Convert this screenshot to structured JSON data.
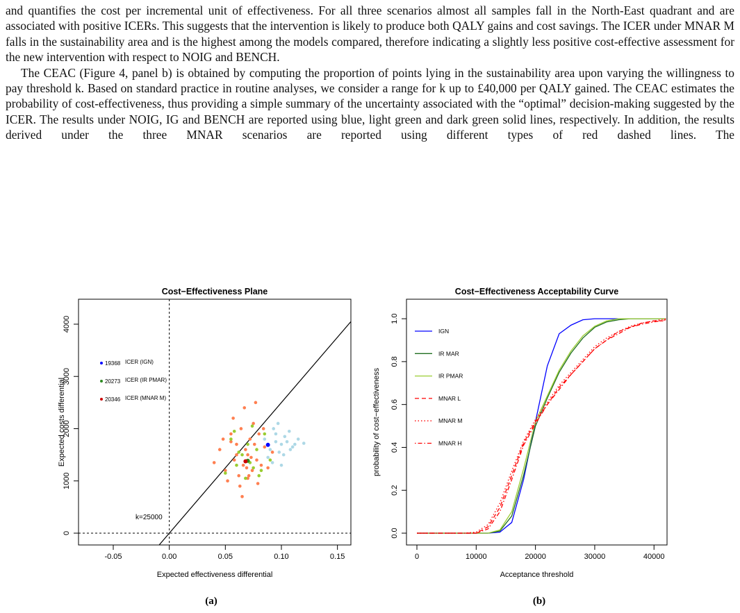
{
  "paragraphs": [
    "and quantifies the cost per incremental unit of effectiveness. For all three scenarios almost all samples fall in the North-East quadrant and are associated with positive ICERs. This suggests that the intervention is likely to produce both QALY gains and cost savings. The ICER under MNAR M falls in the sustainability area and is the highest among the models compared, therefore indicating a slightly less positive cost-effective assessment for the new intervention with respect to NOIG and BENCH.",
    "The CEAC (Figure 4, panel b) is obtained by computing the proportion of points lying in the sustainability area upon varying the willingness to pay threshold k. Based on standard practice in routine analyses, we consider a range for k up to £40,000 per QALY gained. The CEAC estimates the probability of cost-effectiveness, thus providing a simple summary of the uncertainty associated with the “optimal” decision-making suggested by the ICER. The results under NOIG, IG and BENCH are reported using blue, light green and dark green solid lines, respectively. In addition, the results derived under the three MNAR scenarios are reported using different types of red dashed lines. The"
  ],
  "captions": [
    "(a)",
    "(b)"
  ],
  "chart_data": [
    {
      "type": "scatter",
      "title": "Cost−Effectiveness Plane",
      "xlabel": "Expected effectiveness differential",
      "ylabel": "Expected costs differential",
      "xlim": [
        -0.081,
        0.162
      ],
      "ylim": [
        -226,
        4478
      ],
      "xticks": [
        -0.05,
        {
          "value": 0,
          "label": "0.00"
        },
        0.05,
        {
          "value": 0.1,
          "label": "0.10"
        },
        0.15
      ],
      "yticks": [
        0,
        1000,
        2000,
        3000,
        4000
      ],
      "threshold": 25000,
      "threshold_label": "k=25000",
      "series": [
        {
          "color": "#add8e6",
          "x": [
            0.085,
            0.09,
            0.095,
            0.1,
            0.105,
            0.11,
            0.115,
            0.12,
            0.088,
            0.093,
            0.098,
            0.103,
            0.108,
            0.092,
            0.097,
            0.102,
            0.107,
            0.112,
            0.1,
            0.095
          ],
          "values": [
            1800,
            1600,
            1900,
            1700,
            1750,
            1650,
            1800,
            1720,
            1450,
            2000,
            1550,
            1850,
            1600,
            1350,
            2100,
            1500,
            1950,
            1700,
            1300,
            1750
          ]
        },
        {
          "color": "#ff7f50",
          "x": [
            0.045,
            0.05,
            0.055,
            0.058,
            0.06,
            0.062,
            0.064,
            0.066,
            0.068,
            0.07,
            0.072,
            0.074,
            0.076,
            0.078,
            0.08,
            0.082,
            0.085,
            0.088,
            0.052,
            0.057,
            0.063,
            0.067,
            0.071,
            0.075,
            0.079,
            0.048,
            0.06,
            0.069,
            0.073,
            0.084,
            0.04,
            0.092,
            0.065,
            0.077,
            0.055,
            0.07
          ],
          "values": [
            1600,
            1200,
            1900,
            1400,
            1700,
            1100,
            2000,
            1300,
            1600,
            1500,
            1800,
            1200,
            1700,
            1400,
            1900,
            1300,
            1650,
            1250,
            1000,
            2200,
            900,
            2400,
            1100,
            2100,
            950,
            1800,
            1500,
            1250,
            1450,
            2000,
            1350,
            1550,
            700,
            2500,
            1750,
            1050
          ]
        },
        {
          "color": "#9acd32",
          "x": [
            0.05,
            0.055,
            0.06,
            0.065,
            0.07,
            0.075,
            0.08,
            0.085,
            0.09,
            0.058,
            0.068,
            0.078,
            0.072,
            0.062,
            0.082,
            0.074
          ],
          "values": [
            1150,
            1800,
            1300,
            1500,
            1700,
            1250,
            1100,
            1900,
            1400,
            1950,
            1050,
            1600,
            1350,
            1550,
            1200,
            2050
          ]
        }
      ],
      "icers": [
        {
          "value": 19368,
          "label": "ICER (IGN)",
          "color": "#0000ff",
          "x": 0.088,
          "y": 1690
        },
        {
          "value": 20273,
          "label": "ICER (IR PMAR)",
          "color": "#2e8b22",
          "x": 0.07,
          "y": 1385
        },
        {
          "value": 20346,
          "label": "ICER (MNAR M)",
          "color": "#cc0000",
          "x": 0.068,
          "y": 1375
        }
      ]
    },
    {
      "type": "line",
      "title": "Cost−Effectiveness Acceptability Curve",
      "xlabel": "Acceptance threshold",
      "ylabel": "probability of cost−effectiveness",
      "xlim": [
        -1760,
        42200
      ],
      "ylim": [
        -0.055,
        1.091
      ],
      "xticks": [
        0,
        10000,
        20000,
        30000,
        40000
      ],
      "yticks": [
        {
          "value": 0,
          "label": "0.0"
        },
        0.2,
        0.4,
        0.6,
        0.8,
        {
          "value": 1,
          "label": "1.0"
        }
      ],
      "x": [
        0,
        2000,
        4000,
        6000,
        8000,
        10000,
        12000,
        14000,
        16000,
        18000,
        20000,
        22000,
        24000,
        26000,
        28000,
        30000,
        32000,
        34000,
        36000,
        38000,
        40000,
        42000
      ],
      "series": [
        {
          "name": "IGN",
          "color": "#0000ff",
          "dash": "solid",
          "values": [
            0,
            0,
            0,
            0,
            0,
            0,
            0,
            0.005,
            0.05,
            0.25,
            0.52,
            0.78,
            0.93,
            0.97,
            0.995,
            1,
            1,
            1,
            1,
            1,
            1,
            1
          ]
        },
        {
          "name": "IR MAR",
          "color": "#1f6e1f",
          "dash": "solid",
          "values": [
            0,
            0,
            0,
            0,
            0,
            0,
            0,
            0.01,
            0.08,
            0.27,
            0.5,
            0.63,
            0.75,
            0.84,
            0.91,
            0.96,
            0.985,
            0.995,
            1,
            1,
            1,
            1
          ]
        },
        {
          "name": "IR PMAR",
          "color": "#9acd32",
          "dash": "solid",
          "values": [
            0,
            0,
            0,
            0,
            0,
            0,
            0,
            0.015,
            0.1,
            0.3,
            0.52,
            0.64,
            0.76,
            0.85,
            0.92,
            0.965,
            0.99,
            1,
            1,
            1,
            1,
            1
          ]
        },
        {
          "name": "MNAR L",
          "color": "#ff0000",
          "dash": "dashed",
          "values": [
            0,
            0,
            0,
            0,
            0,
            0,
            0.03,
            0.12,
            0.27,
            0.42,
            0.52,
            0.6,
            0.68,
            0.74,
            0.8,
            0.86,
            0.9,
            0.94,
            0.96,
            0.98,
            0.99,
            0.99
          ]
        },
        {
          "name": "MNAR M",
          "color": "#ff0000",
          "dash": "dotted",
          "values": [
            0,
            0,
            0,
            0,
            0,
            0.005,
            0.04,
            0.14,
            0.29,
            0.43,
            0.53,
            0.61,
            0.69,
            0.75,
            0.81,
            0.87,
            0.91,
            0.94,
            0.965,
            0.98,
            0.99,
            1
          ]
        },
        {
          "name": "MNAR H",
          "color": "#ff0000",
          "dash": "dotdash",
          "values": [
            0,
            0,
            0,
            0,
            0,
            0,
            0.02,
            0.1,
            0.25,
            0.41,
            0.51,
            0.6,
            0.67,
            0.74,
            0.8,
            0.86,
            0.9,
            0.93,
            0.96,
            0.975,
            0.985,
            0.995
          ]
        }
      ]
    }
  ]
}
